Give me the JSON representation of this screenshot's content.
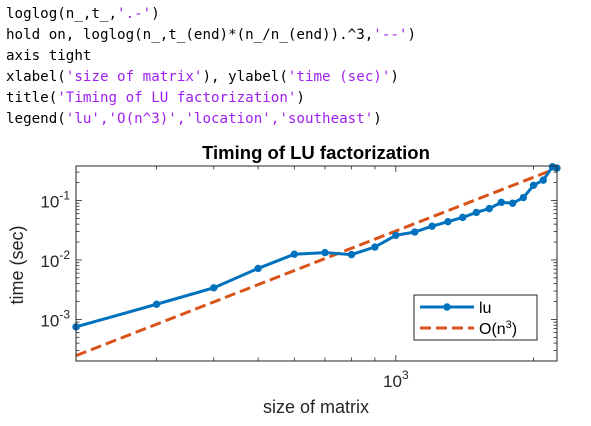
{
  "code": {
    "lines": [
      [
        "loglog(n_,t_,",
        "'.-'",
        ")"
      ],
      [
        "hold on, loglog(n_,t_(end)*(n_/n_(end)).^3,",
        "'--'",
        ")"
      ],
      [
        "axis tight",
        "",
        ""
      ],
      [
        "xlabel(",
        "'size of matrix'",
        "), ylabel(",
        "'time (sec)'",
        ")"
      ],
      [
        "title(",
        "'Timing of LU factorization'",
        ")"
      ],
      [
        "legend(",
        "'lu','O(n^3)','location','southeast'",
        ")"
      ]
    ]
  },
  "colors": {
    "lu": "#0072bd",
    "fit": "#d95319"
  },
  "chart_data": {
    "type": "line",
    "title": "Timing of LU factorization",
    "xlabel": "size of matrix",
    "ylabel": "time (sec)",
    "xscale": "log",
    "yscale": "log",
    "xlim": [
      200,
      2250
    ],
    "ylim": [
      0.0002,
      0.38
    ],
    "x_ticks": [
      {
        "value": 1000,
        "base": "10",
        "exp": "3"
      }
    ],
    "y_ticks": [
      {
        "value": 0.001,
        "base": "10",
        "exp": "-3"
      },
      {
        "value": 0.01,
        "base": "10",
        "exp": "-2"
      },
      {
        "value": 0.1,
        "base": "10",
        "exp": "-1"
      }
    ],
    "legend": {
      "location": "southeast",
      "entries": [
        "lu",
        "O(n",
        "3",
        ")"
      ]
    },
    "series": [
      {
        "name": "lu",
        "style": "dot-solid",
        "x": [
          200,
          300,
          400,
          500,
          600,
          700,
          800,
          900,
          1000,
          1100,
          1200,
          1300,
          1400,
          1500,
          1600,
          1700,
          1800,
          1900,
          2000,
          2100,
          2200,
          2250
        ],
        "y": [
          0.00075,
          0.0018,
          0.0034,
          0.0072,
          0.0125,
          0.0133,
          0.0123,
          0.0165,
          0.026,
          0.0295,
          0.037,
          0.044,
          0.052,
          0.063,
          0.073,
          0.093,
          0.09,
          0.112,
          0.18,
          0.22,
          0.37,
          0.35
        ]
      },
      {
        "name": "O(n^3)",
        "style": "dashed",
        "x": [
          200,
          2250
        ],
        "y": [
          0.000246,
          0.35
        ]
      }
    ]
  }
}
